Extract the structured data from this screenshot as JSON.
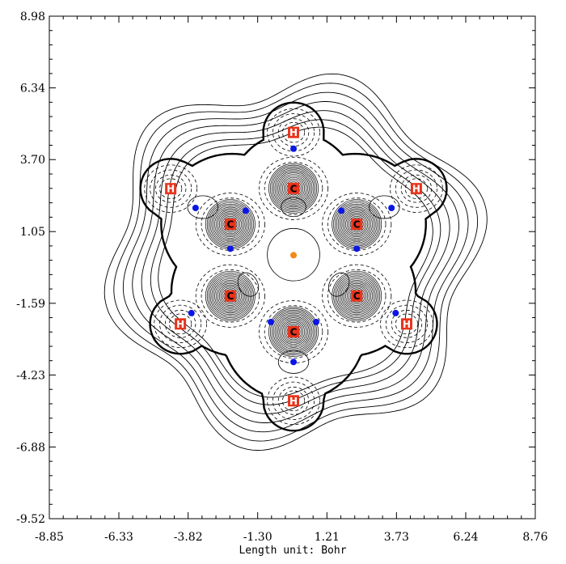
{
  "chart_data": {
    "type": "contour",
    "title": "",
    "xlabel": "Length unit: Bohr",
    "ylabel": "",
    "xlim": [
      -8.85,
      8.76
    ],
    "ylim": [
      -9.52,
      8.98
    ],
    "x_ticks": [
      "-8.85",
      "-6.33",
      "-3.82",
      "-1.30",
      "1.21",
      "3.73",
      "6.24",
      "8.76"
    ],
    "y_ticks": [
      "8.98",
      "6.34",
      "3.70",
      "1.05",
      "-1.59",
      "-4.23",
      "-6.88",
      "-9.52"
    ],
    "grid": false,
    "colors": {
      "contour_solid": "#000000",
      "contour_dashed": "#000000",
      "nucleus": "#e8341c",
      "bond_critical_point": "#0b16e6",
      "ring_critical_point": "#f28a18"
    },
    "atoms": [
      {
        "label": "C",
        "x": 0.0,
        "y": 2.64
      },
      {
        "label": "C",
        "x": 2.29,
        "y": 1.32
      },
      {
        "label": "C",
        "x": 2.29,
        "y": -1.32
      },
      {
        "label": "C",
        "x": 0.0,
        "y": -2.64
      },
      {
        "label": "C",
        "x": -2.29,
        "y": -1.32
      },
      {
        "label": "C",
        "x": -2.29,
        "y": 1.32
      },
      {
        "label": "H",
        "x": 0.0,
        "y": 4.7
      },
      {
        "label": "H",
        "x": 4.45,
        "y": 2.63
      },
      {
        "label": "H",
        "x": 4.1,
        "y": -2.35
      },
      {
        "label": "H",
        "x": 0.0,
        "y": -5.18
      },
      {
        "label": "H",
        "x": -4.1,
        "y": -2.35
      },
      {
        "label": "H",
        "x": -4.45,
        "y": 2.63
      }
    ],
    "bond_critical_points": [
      {
        "x": 0.0,
        "y": 4.1
      },
      {
        "x": -1.73,
        "y": 1.82
      },
      {
        "x": 1.73,
        "y": 1.82
      },
      {
        "x": -3.55,
        "y": 1.92
      },
      {
        "x": 3.55,
        "y": 1.92
      },
      {
        "x": -2.29,
        "y": 0.42
      },
      {
        "x": 2.29,
        "y": 0.42
      },
      {
        "x": -3.7,
        "y": -1.95
      },
      {
        "x": 3.7,
        "y": -1.95
      },
      {
        "x": -0.82,
        "y": -2.28
      },
      {
        "x": 0.82,
        "y": -2.28
      },
      {
        "x": 0.0,
        "y": -3.75
      }
    ],
    "ring_critical_points": [
      {
        "x": 0.0,
        "y": 0.18
      }
    ]
  }
}
